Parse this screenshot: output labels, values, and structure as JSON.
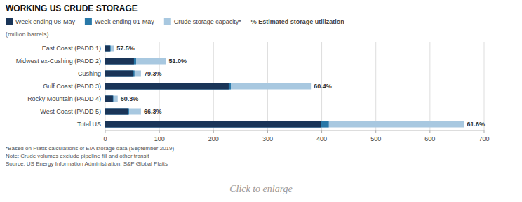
{
  "chart_data": {
    "type": "bar",
    "orientation": "horizontal",
    "stacked": false,
    "title": "WORKING US CRUDE STORAGE",
    "subtitle": "(million barrels)",
    "categories": [
      "East Coast (PADD 1)",
      "Midwest ex-Cushing (PADD 2)",
      "Cushing",
      "Gulf Coast (PADD 3)",
      "Rocky Mountain (PADD 4)",
      "West Coast (PADD 5)",
      "Total US"
    ],
    "series": [
      {
        "name": "Week ending 08-May",
        "color": "#1a3558",
        "values": [
          9,
          53,
          52,
          228,
          14,
          42,
          399
        ]
      },
      {
        "name": "Week ending 01-May",
        "color": "#2978a8",
        "values": [
          10,
          57,
          54,
          232,
          15,
          44,
          413
        ]
      },
      {
        "name": "Crude storage capacity*",
        "color": "#a8c8e0",
        "values": [
          16,
          112,
          66,
          380,
          23,
          66,
          663
        ]
      }
    ],
    "utilization": {
      "name": "% Estimated storage utilization",
      "values": [
        57.5,
        51.0,
        79.3,
        60.4,
        60.3,
        66.3,
        61.6
      ],
      "value_labels": [
        "57.5%",
        "51.0%",
        "79.3%",
        "60.4%",
        "60.3%",
        "66.3%",
        "61.6%"
      ]
    },
    "xlim": [
      0,
      700
    ],
    "xticks": [
      0,
      100,
      200,
      300,
      400,
      500,
      600,
      700
    ],
    "grid": true,
    "legend": "top",
    "notes": [
      "*Based on Platts calculations of EIA storage data (September 2019)",
      "Note: Crude volumes exclude pipeline fill and other transit",
      "Source: US Energy Information Administration, S&P Global Platts"
    ],
    "caption": "Click to enlarge"
  }
}
